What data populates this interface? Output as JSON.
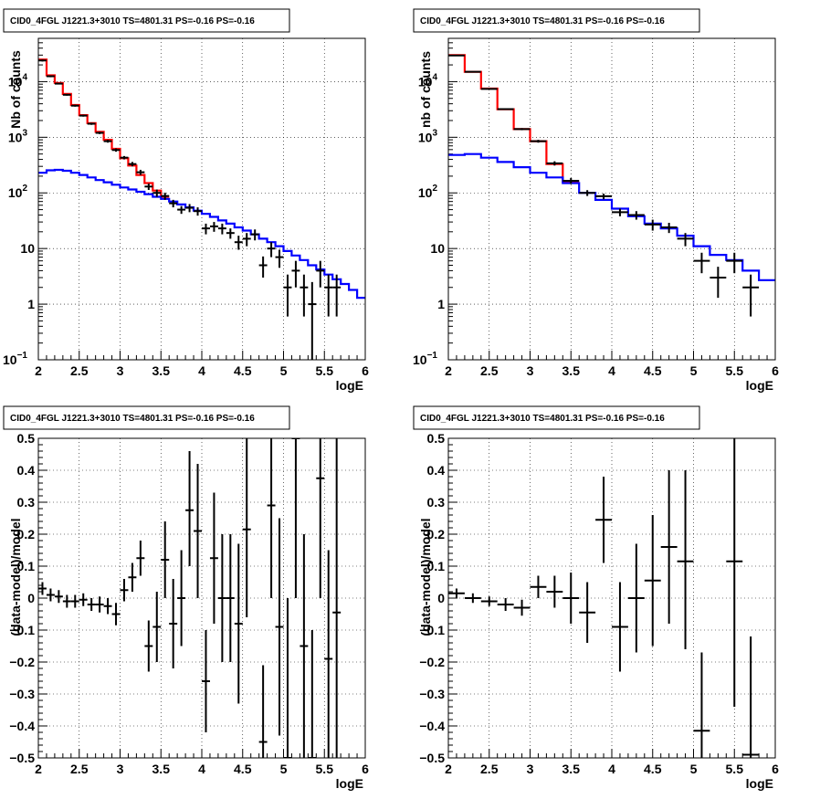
{
  "chart_data": [
    {
      "type": "line",
      "title": "CID0_4FGL J1221.3+3010 TS=4801.31 PS=-0.16 PS=-0.16",
      "xlabel": "logE",
      "ylabel": "Nb of counts",
      "xlim": [
        2,
        6
      ],
      "ylim": [
        0.1,
        60000
      ],
      "yscale": "log",
      "grid": true,
      "xticks": [
        "2",
        "2.5",
        "3",
        "3.5",
        "4",
        "4.5",
        "5",
        "5.5",
        "6"
      ],
      "yticks": [
        {
          "value": 0.1,
          "label": "10",
          "sup": "−1"
        },
        {
          "value": 1,
          "label": "1",
          "sup": ""
        },
        {
          "value": 10,
          "label": "10",
          "sup": ""
        },
        {
          "value": 100,
          "label": "10",
          "sup": "2"
        },
        {
          "value": 1000,
          "label": "10",
          "sup": "3"
        },
        {
          "value": 10000,
          "label": "10",
          "sup": "4"
        }
      ],
      "series": [
        {
          "color": "#ff0000",
          "style": "step",
          "edges": [
            2,
            2.1,
            2.2,
            2.3,
            2.4,
            2.5,
            2.6,
            2.7,
            2.8,
            2.9,
            3.0,
            3.1,
            3.2,
            3.3,
            3.4,
            3.5,
            3.6
          ],
          "values": [
            25000,
            13000,
            9500,
            6000,
            3800,
            2500,
            1800,
            1250,
            900,
            620,
            420,
            310,
            210,
            150,
            110,
            85
          ]
        },
        {
          "color": "#0000ff",
          "style": "step",
          "edges": [
            2,
            2.1,
            2.2,
            2.3,
            2.4,
            2.5,
            2.6,
            2.7,
            2.8,
            2.9,
            3.0,
            3.1,
            3.2,
            3.3,
            3.4,
            3.5,
            3.6,
            3.7,
            3.8,
            3.9,
            4.0,
            4.1,
            4.2,
            4.3,
            4.4,
            4.5,
            4.6,
            4.7,
            4.8,
            4.9,
            5.0,
            5.1,
            5.2,
            5.3,
            5.4,
            5.5,
            5.6,
            5.7,
            5.8,
            5.9,
            6.0
          ],
          "values": [
            230,
            255,
            260,
            250,
            230,
            210,
            190,
            170,
            155,
            140,
            125,
            115,
            105,
            95,
            85,
            78,
            70,
            62,
            55,
            48,
            42,
            37,
            32,
            28,
            24,
            21,
            18,
            15,
            13,
            11,
            9,
            7.5,
            6.2,
            5.0,
            4.2,
            3.4,
            2.8,
            2.3,
            1.8,
            1.3
          ]
        }
      ],
      "points": [
        {
          "x": 2.05,
          "y": 24000,
          "lo": 23000,
          "hi": 25000
        },
        {
          "x": 2.15,
          "y": 12500,
          "lo": 12000,
          "hi": 13000
        },
        {
          "x": 2.25,
          "y": 9200,
          "lo": 8900,
          "hi": 9500
        },
        {
          "x": 2.35,
          "y": 5800,
          "lo": 5600,
          "hi": 6000
        },
        {
          "x": 2.45,
          "y": 3700,
          "lo": 3550,
          "hi": 3850
        },
        {
          "x": 2.55,
          "y": 2450,
          "lo": 2350,
          "hi": 2550
        },
        {
          "x": 2.65,
          "y": 1750,
          "lo": 1670,
          "hi": 1830
        },
        {
          "x": 2.75,
          "y": 1200,
          "lo": 1140,
          "hi": 1260
        },
        {
          "x": 2.85,
          "y": 850,
          "lo": 800,
          "hi": 900
        },
        {
          "x": 2.95,
          "y": 590,
          "lo": 550,
          "hi": 630
        },
        {
          "x": 3.05,
          "y": 430,
          "lo": 400,
          "hi": 460
        },
        {
          "x": 3.15,
          "y": 330,
          "lo": 300,
          "hi": 360
        },
        {
          "x": 3.25,
          "y": 235,
          "lo": 210,
          "hi": 260
        },
        {
          "x": 3.35,
          "y": 130,
          "lo": 113,
          "hi": 147
        },
        {
          "x": 3.45,
          "y": 100,
          "lo": 85,
          "hi": 115
        },
        {
          "x": 3.55,
          "y": 88,
          "lo": 75,
          "hi": 101
        },
        {
          "x": 3.65,
          "y": 65,
          "lo": 55,
          "hi": 75
        },
        {
          "x": 3.75,
          "y": 50,
          "lo": 42,
          "hi": 58
        },
        {
          "x": 3.85,
          "y": 54,
          "lo": 45,
          "hi": 63
        },
        {
          "x": 3.95,
          "y": 47,
          "lo": 39,
          "hi": 55
        },
        {
          "x": 4.05,
          "y": 23,
          "lo": 18,
          "hi": 28
        },
        {
          "x": 4.15,
          "y": 25,
          "lo": 20,
          "hi": 30
        },
        {
          "x": 4.25,
          "y": 23,
          "lo": 18,
          "hi": 28
        },
        {
          "x": 4.35,
          "y": 19,
          "lo": 15,
          "hi": 23
        },
        {
          "x": 4.45,
          "y": 13,
          "lo": 9.5,
          "hi": 17
        },
        {
          "x": 4.55,
          "y": 15,
          "lo": 11,
          "hi": 19
        },
        {
          "x": 4.65,
          "y": 18,
          "lo": 14,
          "hi": 22
        },
        {
          "x": 4.75,
          "y": 5,
          "lo": 3,
          "hi": 7.2
        },
        {
          "x": 4.85,
          "y": 10,
          "lo": 7,
          "hi": 13
        },
        {
          "x": 4.95,
          "y": 7,
          "lo": 4.5,
          "hi": 9.5
        },
        {
          "x": 5.05,
          "y": 2,
          "lo": 0.6,
          "hi": 3.4
        },
        {
          "x": 5.15,
          "y": 4,
          "lo": 2,
          "hi": 6
        },
        {
          "x": 5.25,
          "y": 2,
          "lo": 0.6,
          "hi": 3.4
        },
        {
          "x": 5.35,
          "y": 1,
          "lo": 0.1,
          "hi": 2.5
        },
        {
          "x": 5.45,
          "y": 4,
          "lo": 2,
          "hi": 6
        },
        {
          "x": 5.55,
          "y": 2,
          "lo": 0.6,
          "hi": 3.4
        },
        {
          "x": 5.65,
          "y": 2,
          "lo": 0.6,
          "hi": 3.4
        }
      ]
    },
    {
      "type": "line",
      "title": "CID0_4FGL J1221.3+3010 TS=4801.31 PS=-0.16 PS=-0.16",
      "xlabel": "logE",
      "ylabel": "nb of counts",
      "xlim": [
        2,
        6
      ],
      "ylim": [
        0.1,
        60000
      ],
      "yscale": "log",
      "grid": true,
      "xticks": [
        "2",
        "2.5",
        "3",
        "3.5",
        "4",
        "4.5",
        "5",
        "5.5",
        "6"
      ],
      "yticks": [
        {
          "value": 0.1,
          "label": "10",
          "sup": "−1"
        },
        {
          "value": 1,
          "label": "1",
          "sup": ""
        },
        {
          "value": 10,
          "label": "10",
          "sup": ""
        },
        {
          "value": 100,
          "label": "10",
          "sup": "2"
        },
        {
          "value": 1000,
          "label": "10",
          "sup": "3"
        },
        {
          "value": 10000,
          "label": "10",
          "sup": "4"
        }
      ],
      "series": [
        {
          "color": "#ff0000",
          "style": "step",
          "edges": [
            2,
            2.2,
            2.4,
            2.6,
            2.8,
            3.0,
            3.2,
            3.4,
            3.6
          ],
          "values": [
            30000,
            15000,
            7500,
            3200,
            1400,
            850,
            330,
            160
          ]
        },
        {
          "color": "#0000ff",
          "style": "step",
          "edges": [
            2,
            2.2,
            2.4,
            2.6,
            2.8,
            3.0,
            3.2,
            3.4,
            3.6,
            3.8,
            4.0,
            4.2,
            4.4,
            4.6,
            4.8,
            5.0,
            5.2,
            5.4,
            5.6,
            5.8,
            6.0
          ],
          "values": [
            480,
            500,
            430,
            360,
            290,
            230,
            190,
            150,
            100,
            75,
            52,
            38,
            28,
            23,
            17,
            11,
            7.7,
            6.2,
            4.0,
            2.7
          ]
        }
      ],
      "points": [
        {
          "x": 2.1,
          "y": 29500,
          "lo": 29000,
          "hi": 30000
        },
        {
          "x": 2.3,
          "y": 15000,
          "lo": 14700,
          "hi": 15300
        },
        {
          "x": 2.5,
          "y": 7400,
          "lo": 7200,
          "hi": 7600
        },
        {
          "x": 2.7,
          "y": 3200,
          "lo": 3100,
          "hi": 3300
        },
        {
          "x": 2.9,
          "y": 1400,
          "lo": 1340,
          "hi": 1460
        },
        {
          "x": 3.1,
          "y": 850,
          "lo": 800,
          "hi": 900
        },
        {
          "x": 3.3,
          "y": 340,
          "lo": 310,
          "hi": 370
        },
        {
          "x": 3.5,
          "y": 165,
          "lo": 145,
          "hi": 185
        },
        {
          "x": 3.7,
          "y": 100,
          "lo": 88,
          "hi": 112
        },
        {
          "x": 3.9,
          "y": 87,
          "lo": 77,
          "hi": 97
        },
        {
          "x": 4.1,
          "y": 45,
          "lo": 38,
          "hi": 52
        },
        {
          "x": 4.3,
          "y": 40,
          "lo": 33,
          "hi": 47
        },
        {
          "x": 4.5,
          "y": 27,
          "lo": 21,
          "hi": 33
        },
        {
          "x": 4.7,
          "y": 24,
          "lo": 19,
          "hi": 29
        },
        {
          "x": 4.9,
          "y": 15,
          "lo": 11,
          "hi": 19
        },
        {
          "x": 5.1,
          "y": 6,
          "lo": 3.6,
          "hi": 8.4
        },
        {
          "x": 5.3,
          "y": 3,
          "lo": 1.3,
          "hi": 4.7
        },
        {
          "x": 5.5,
          "y": 6,
          "lo": 3.6,
          "hi": 8.4
        },
        {
          "x": 5.7,
          "y": 2,
          "lo": 0.6,
          "hi": 3.4
        }
      ]
    },
    {
      "type": "scatter",
      "title": "CID0_4FGL J1221.3+3010 TS=4801.31 PS=-0.16 PS=-0.16",
      "xlabel": "logE",
      "ylabel": "(data-model)/model",
      "xlim": [
        2,
        6
      ],
      "ylim": [
        -0.5,
        0.5
      ],
      "yscale": "linear",
      "grid": true,
      "xticks": [
        "2",
        "2.5",
        "3",
        "3.5",
        "4",
        "4.5",
        "5",
        "5.5",
        "6"
      ],
      "yticks": [
        {
          "value": -0.5,
          "label": "−0.5"
        },
        {
          "value": -0.4,
          "label": "−0.4"
        },
        {
          "value": -0.3,
          "label": "−0.3"
        },
        {
          "value": -0.2,
          "label": "−0.2"
        },
        {
          "value": -0.1,
          "label": "−0.1"
        },
        {
          "value": 0,
          "label": "0"
        },
        {
          "value": 0.1,
          "label": "0.1"
        },
        {
          "value": 0.2,
          "label": "0.2"
        },
        {
          "value": 0.3,
          "label": "0.3"
        },
        {
          "value": 0.4,
          "label": "0.4"
        },
        {
          "value": 0.5,
          "label": "0.5"
        }
      ],
      "bin_halfwidth": 0.05,
      "points": [
        {
          "x": 2.05,
          "y": 0.03,
          "lo": 0.01,
          "hi": 0.05
        },
        {
          "x": 2.15,
          "y": 0.01,
          "lo": -0.01,
          "hi": 0.03
        },
        {
          "x": 2.25,
          "y": 0.005,
          "lo": -0.015,
          "hi": 0.025
        },
        {
          "x": 2.35,
          "y": -0.01,
          "lo": -0.03,
          "hi": 0.01
        },
        {
          "x": 2.45,
          "y": -0.01,
          "lo": -0.03,
          "hi": 0.01
        },
        {
          "x": 2.55,
          "y": -0.005,
          "lo": -0.025,
          "hi": 0.015
        },
        {
          "x": 2.65,
          "y": -0.02,
          "lo": -0.04,
          "hi": 0.0
        },
        {
          "x": 2.75,
          "y": -0.02,
          "lo": -0.045,
          "hi": 0.005
        },
        {
          "x": 2.85,
          "y": -0.025,
          "lo": -0.05,
          "hi": 0.0
        },
        {
          "x": 2.95,
          "y": -0.05,
          "lo": -0.085,
          "hi": -0.015
        },
        {
          "x": 3.05,
          "y": 0.025,
          "lo": -0.01,
          "hi": 0.06
        },
        {
          "x": 3.15,
          "y": 0.065,
          "lo": 0.02,
          "hi": 0.11
        },
        {
          "x": 3.25,
          "y": 0.125,
          "lo": 0.07,
          "hi": 0.18
        },
        {
          "x": 3.35,
          "y": -0.15,
          "lo": -0.23,
          "hi": -0.07
        },
        {
          "x": 3.45,
          "y": -0.09,
          "lo": -0.2,
          "hi": 0.02
        },
        {
          "x": 3.55,
          "y": 0.12,
          "lo": 0.0,
          "hi": 0.24
        },
        {
          "x": 3.65,
          "y": -0.08,
          "lo": -0.22,
          "hi": 0.06
        },
        {
          "x": 3.75,
          "y": 0.0,
          "lo": -0.15,
          "hi": 0.15
        },
        {
          "x": 3.85,
          "y": 0.275,
          "lo": 0.1,
          "hi": 0.46
        },
        {
          "x": 3.95,
          "y": 0.21,
          "lo": 0.0,
          "hi": 0.42
        },
        {
          "x": 4.05,
          "y": -0.26,
          "lo": -0.42,
          "hi": -0.1
        },
        {
          "x": 4.15,
          "y": 0.125,
          "lo": -0.08,
          "hi": 0.33
        },
        {
          "x": 4.25,
          "y": 0.0,
          "lo": -0.2,
          "hi": 0.2
        },
        {
          "x": 4.35,
          "y": 0.0,
          "lo": -0.2,
          "hi": 0.2
        },
        {
          "x": 4.45,
          "y": -0.08,
          "lo": -0.33,
          "hi": 0.17
        },
        {
          "x": 4.55,
          "y": 0.215,
          "lo": -0.06,
          "hi": 0.5
        },
        {
          "x": 4.75,
          "y": -0.45,
          "lo": -0.5,
          "hi": -0.21
        },
        {
          "x": 4.85,
          "y": 0.29,
          "lo": 0.0,
          "hi": 0.5
        },
        {
          "x": 4.95,
          "y": -0.09,
          "lo": -0.43,
          "hi": 0.25
        },
        {
          "x": 5.05,
          "y": -0.5,
          "lo": -0.5,
          "hi": 0.0
        },
        {
          "x": 5.15,
          "y": 0.5,
          "lo": 0.0,
          "hi": 0.5
        },
        {
          "x": 5.25,
          "y": -0.15,
          "lo": -0.5,
          "hi": 0.2
        },
        {
          "x": 5.35,
          "y": -0.5,
          "lo": -0.5,
          "hi": -0.1
        },
        {
          "x": 5.45,
          "y": 0.375,
          "lo": 0.0,
          "hi": 0.5
        },
        {
          "x": 5.55,
          "y": -0.19,
          "lo": -0.5,
          "hi": 0.15
        },
        {
          "x": 5.65,
          "y": -0.045,
          "lo": -0.5,
          "hi": 0.5
        }
      ]
    },
    {
      "type": "scatter",
      "title": "CID0_4FGL J1221.3+3010 TS=4801.31 PS=-0.16 PS=-0.16",
      "xlabel": "logE",
      "ylabel": "(data-model)/model",
      "xlim": [
        2,
        6
      ],
      "ylim": [
        -0.5,
        0.5
      ],
      "yscale": "linear",
      "grid": true,
      "xticks": [
        "2",
        "2.5",
        "3",
        "3.5",
        "4",
        "4.5",
        "5",
        "5.5",
        "6"
      ],
      "yticks": [
        {
          "value": -0.5,
          "label": "−0.5"
        },
        {
          "value": -0.4,
          "label": "−0.4"
        },
        {
          "value": -0.3,
          "label": "−0.3"
        },
        {
          "value": -0.2,
          "label": "−0.2"
        },
        {
          "value": -0.1,
          "label": "−0.1"
        },
        {
          "value": 0,
          "label": "0"
        },
        {
          "value": 0.1,
          "label": "0.1"
        },
        {
          "value": 0.2,
          "label": "0.2"
        },
        {
          "value": 0.3,
          "label": "0.3"
        },
        {
          "value": 0.4,
          "label": "0.4"
        },
        {
          "value": 0.5,
          "label": "0.5"
        }
      ],
      "bin_halfwidth": 0.1,
      "points": [
        {
          "x": 2.1,
          "y": 0.015,
          "lo": 0.0,
          "hi": 0.03
        },
        {
          "x": 2.3,
          "y": 0.0,
          "lo": -0.015,
          "hi": 0.015
        },
        {
          "x": 2.5,
          "y": -0.01,
          "lo": -0.025,
          "hi": 0.005
        },
        {
          "x": 2.7,
          "y": -0.02,
          "lo": -0.04,
          "hi": 0.0
        },
        {
          "x": 2.9,
          "y": -0.03,
          "lo": -0.055,
          "hi": -0.005
        },
        {
          "x": 3.1,
          "y": 0.035,
          "lo": 0.0,
          "hi": 0.07
        },
        {
          "x": 3.3,
          "y": 0.02,
          "lo": -0.03,
          "hi": 0.07
        },
        {
          "x": 3.5,
          "y": 0.0,
          "lo": -0.08,
          "hi": 0.08
        },
        {
          "x": 3.7,
          "y": -0.045,
          "lo": -0.14,
          "hi": 0.05
        },
        {
          "x": 3.9,
          "y": 0.245,
          "lo": 0.11,
          "hi": 0.38
        },
        {
          "x": 4.1,
          "y": -0.09,
          "lo": -0.23,
          "hi": 0.05
        },
        {
          "x": 4.3,
          "y": 0.0,
          "lo": -0.17,
          "hi": 0.17
        },
        {
          "x": 4.5,
          "y": 0.055,
          "lo": -0.15,
          "hi": 0.26
        },
        {
          "x": 4.7,
          "y": 0.16,
          "lo": -0.08,
          "hi": 0.4
        },
        {
          "x": 4.9,
          "y": 0.115,
          "lo": -0.16,
          "hi": 0.4
        },
        {
          "x": 5.1,
          "y": -0.415,
          "lo": -0.5,
          "hi": -0.17
        },
        {
          "x": 5.5,
          "y": 0.115,
          "lo": -0.34,
          "hi": 0.5
        },
        {
          "x": 5.7,
          "y": -0.49,
          "lo": -0.5,
          "hi": -0.12
        }
      ]
    }
  ]
}
